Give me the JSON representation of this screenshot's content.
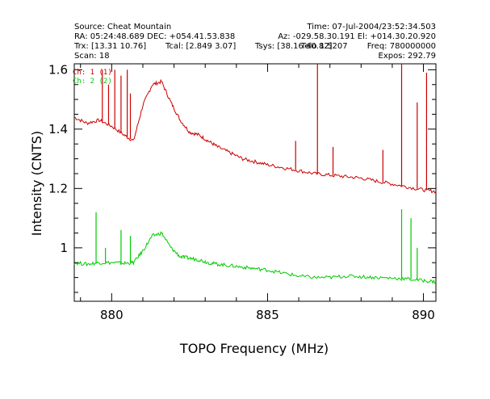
{
  "header": {
    "line1_left": "Source: Cheat Mountain",
    "line1_right": "Time: 07-Jul-2004/23:52:34.503",
    "line2_left": "RA: 05:24:48.689 DEC: +054.41.53.838",
    "line2_right": "Az: -029.58.30.191 El: +014.30.20.920",
    "line3_left": "Trx: [13.31 10.76]",
    "line3_mid": "Tcal: [2.849 3.07]",
    "line3_mid2": "Tsys: [38.16 40.82]",
    "line3_right": "Freq: 780000000",
    "line3_overlap": "Telo 1.5207",
    "line4_left": "Scan: 18",
    "line4_right": "Expos: 292.79"
  },
  "chart_data": {
    "type": "line",
    "title": "",
    "xlabel": "TOPO Frequency (MHz)",
    "ylabel": "Intensity (CNTS)",
    "xlim": [
      878.8,
      890.4
    ],
    "ylim": [
      0.82,
      1.62
    ],
    "xticks": [
      880,
      885,
      890
    ],
    "xtick_labels": [
      "880",
      "885",
      "890"
    ],
    "yticks": [
      1.0,
      1.2,
      1.4,
      1.6
    ],
    "ytick_labels": [
      "1",
      "1.2",
      "1.4",
      "1.6"
    ],
    "grid": false,
    "legend": "top-left",
    "series": [
      {
        "name": "Ch: 1",
        "legend_text": "Ch: 1 (1)",
        "color": "#cc0000",
        "x": [
          878.8,
          879.2,
          879.6,
          880.0,
          880.4,
          880.7,
          881.0,
          881.3,
          881.6,
          881.9,
          882.2,
          882.5,
          882.8,
          883.1,
          883.4,
          883.8,
          884.2,
          884.6,
          885.0,
          885.5,
          886.0,
          886.5,
          887.0,
          887.5,
          888.0,
          888.5,
          889.0,
          889.5,
          890.0,
          890.4
        ],
        "y": [
          1.44,
          1.42,
          1.43,
          1.41,
          1.38,
          1.36,
          1.48,
          1.55,
          1.56,
          1.49,
          1.43,
          1.39,
          1.38,
          1.36,
          1.34,
          1.32,
          1.3,
          1.29,
          1.28,
          1.27,
          1.26,
          1.25,
          1.245,
          1.24,
          1.235,
          1.225,
          1.215,
          1.205,
          1.195,
          1.19
        ],
        "spikes": [
          {
            "x": 879.7,
            "y": 1.6
          },
          {
            "x": 879.9,
            "y": 1.55
          },
          {
            "x": 880.1,
            "y": 1.6
          },
          {
            "x": 880.3,
            "y": 1.58
          },
          {
            "x": 880.5,
            "y": 1.6
          },
          {
            "x": 880.6,
            "y": 1.52
          },
          {
            "x": 885.9,
            "y": 1.36
          },
          {
            "x": 886.6,
            "y": 1.62
          },
          {
            "x": 887.1,
            "y": 1.34
          },
          {
            "x": 888.7,
            "y": 1.33
          },
          {
            "x": 889.3,
            "y": 1.62
          },
          {
            "x": 889.8,
            "y": 1.49
          },
          {
            "x": 890.1,
            "y": 1.59
          }
        ]
      },
      {
        "name": "Ch: 2",
        "legend_text": "Ch: 2 (2)",
        "color": "#00cc00",
        "x": [
          878.8,
          879.2,
          879.6,
          880.0,
          880.4,
          880.7,
          881.0,
          881.3,
          881.6,
          881.9,
          882.2,
          882.5,
          882.8,
          883.1,
          883.4,
          883.8,
          884.2,
          884.6,
          885.0,
          885.5,
          886.0,
          886.5,
          887.0,
          887.5,
          888.0,
          888.5,
          889.0,
          889.5,
          890.0,
          890.4
        ],
        "y": [
          0.95,
          0.945,
          0.95,
          0.95,
          0.948,
          0.95,
          0.99,
          1.04,
          1.05,
          1.0,
          0.97,
          0.965,
          0.96,
          0.95,
          0.945,
          0.94,
          0.935,
          0.93,
          0.925,
          0.915,
          0.905,
          0.9,
          0.9,
          0.905,
          0.903,
          0.9,
          0.898,
          0.895,
          0.89,
          0.885
        ],
        "spikes": [
          {
            "x": 879.5,
            "y": 1.12
          },
          {
            "x": 879.8,
            "y": 1.0
          },
          {
            "x": 880.3,
            "y": 1.06
          },
          {
            "x": 880.6,
            "y": 1.04
          },
          {
            "x": 889.3,
            "y": 1.13
          },
          {
            "x": 889.6,
            "y": 1.1
          },
          {
            "x": 889.8,
            "y": 1.0
          }
        ]
      }
    ]
  }
}
